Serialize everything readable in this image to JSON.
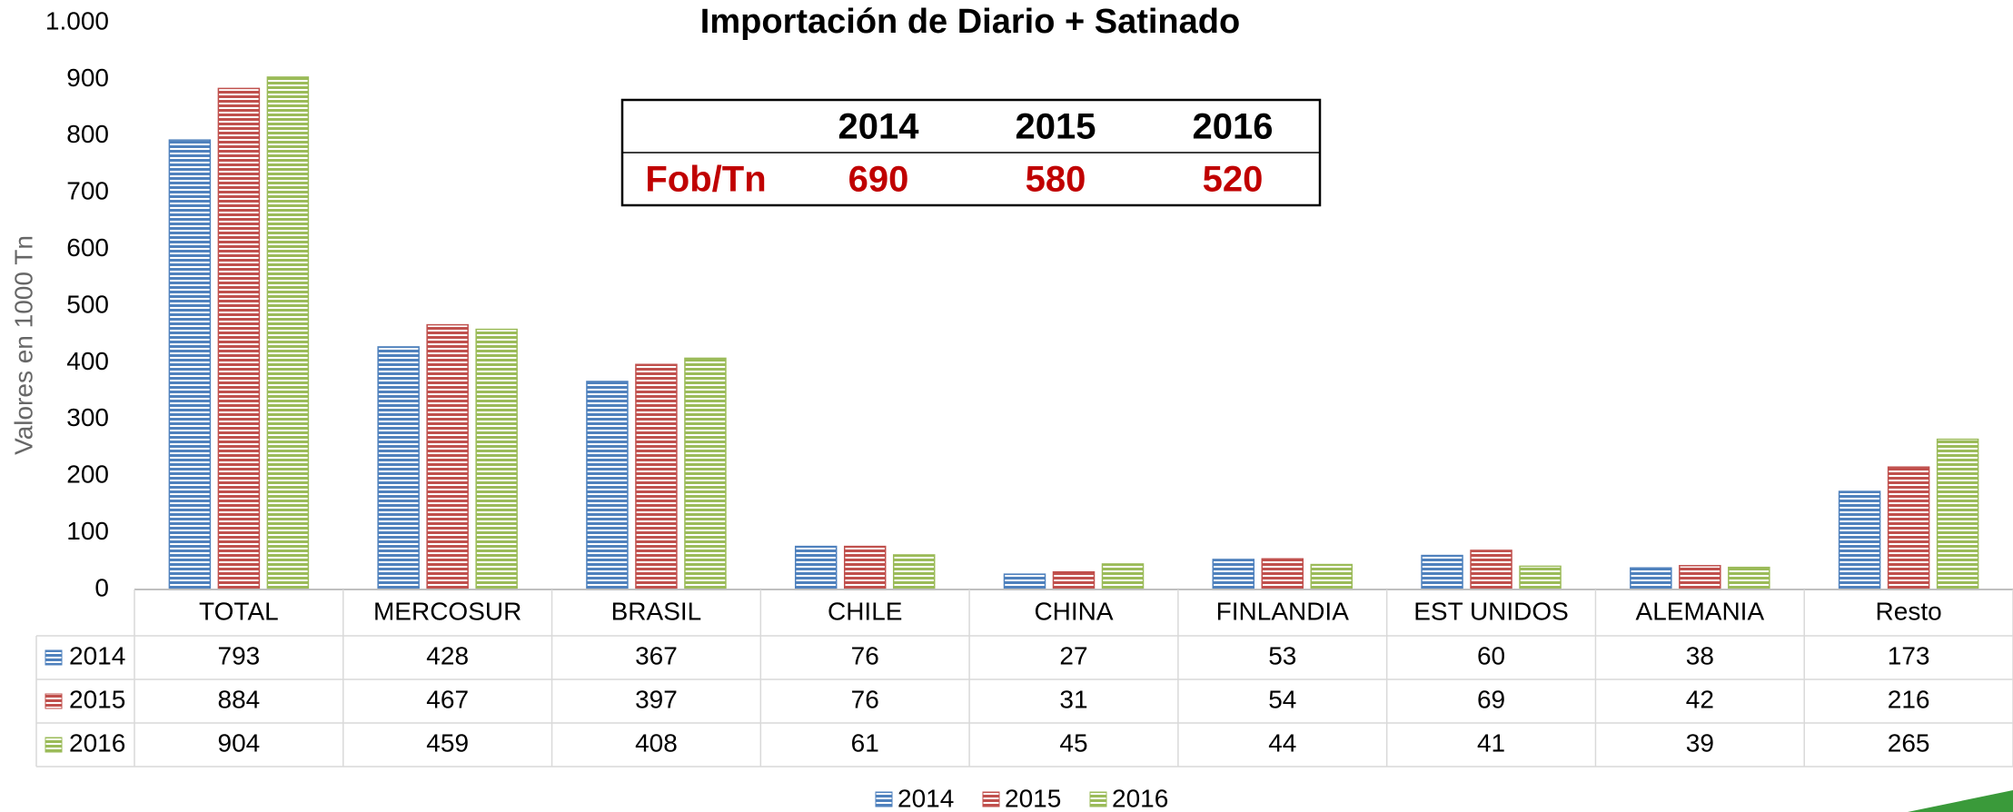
{
  "chart_data": {
    "type": "bar",
    "title": "Importación de Diario + Satinado",
    "y_label": "Valores en 1000 Tn",
    "categories": [
      "TOTAL",
      "MERCOSUR",
      "BRASIL",
      "CHILE",
      "CHINA",
      "FINLANDIA",
      "EST UNIDOS",
      "ALEMANIA",
      "Resto"
    ],
    "series": [
      {
        "name": "2014",
        "color": "#4f81bd",
        "values": [
          793,
          428,
          367,
          76,
          27,
          53,
          60,
          38,
          173
        ]
      },
      {
        "name": "2015",
        "color": "#c0504d",
        "values": [
          884,
          467,
          397,
          76,
          31,
          54,
          69,
          42,
          216
        ]
      },
      {
        "name": "2016",
        "color": "#9bbb59",
        "values": [
          904,
          459,
          408,
          61,
          45,
          44,
          41,
          39,
          265
        ]
      }
    ],
    "ylim": [
      0,
      1000
    ],
    "yticks": [
      0,
      100,
      200,
      300,
      400,
      500,
      600,
      700,
      800,
      900,
      {
        "value": 1000,
        "label": "1.000"
      }
    ],
    "legend": "bottom",
    "fob_table": {
      "header": [
        "2014",
        "2015",
        "2016"
      ],
      "row_label": "Fob/Tn",
      "values": [
        690,
        580,
        520
      ]
    }
  }
}
